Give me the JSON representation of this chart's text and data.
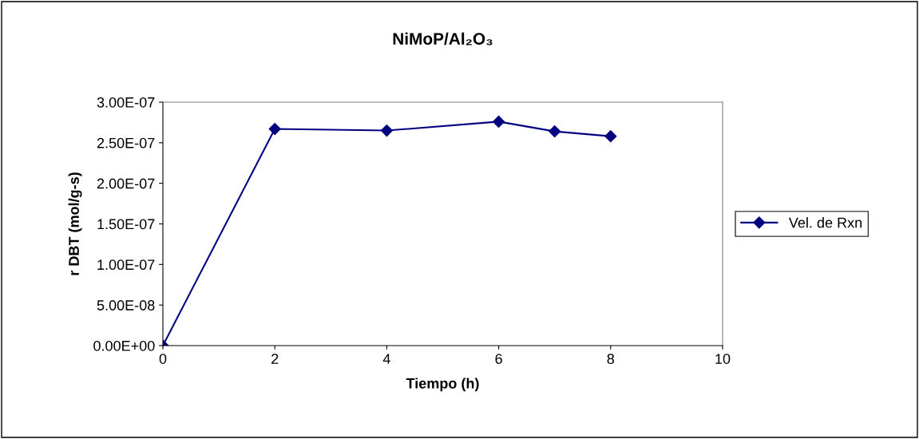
{
  "chart_data": {
    "type": "line",
    "title": "NiMoP/Al₂O₃",
    "xlabel": "Tiempo (h)",
    "ylabel": "r DBT (mol/g-s)",
    "x": [
      0,
      2,
      4,
      6,
      7,
      8
    ],
    "series": [
      {
        "name": "Vel. de Rxn",
        "color": "#000080",
        "values": [
          0,
          2.67e-07,
          2.65e-07,
          2.76e-07,
          2.64e-07,
          2.58e-07
        ]
      }
    ],
    "xlim": [
      0,
      10
    ],
    "xticks": [
      0,
      2,
      4,
      6,
      8,
      10
    ],
    "ylim": [
      0,
      3e-07
    ],
    "yticks": [
      {
        "value": 0,
        "label": "0.00E+00"
      },
      {
        "value": 5e-08,
        "label": "5.00E-08"
      },
      {
        "value": 1e-07,
        "label": "1.00E-07"
      },
      {
        "value": 1.5e-07,
        "label": "1.50E-07"
      },
      {
        "value": 2e-07,
        "label": "2.00E-07"
      },
      {
        "value": 2.5e-07,
        "label": "2.50E-07"
      },
      {
        "value": 3e-07,
        "label": "3.00E-07"
      }
    ],
    "grid": false,
    "legend": "right",
    "marker": "diamond",
    "line_style": "solid"
  }
}
